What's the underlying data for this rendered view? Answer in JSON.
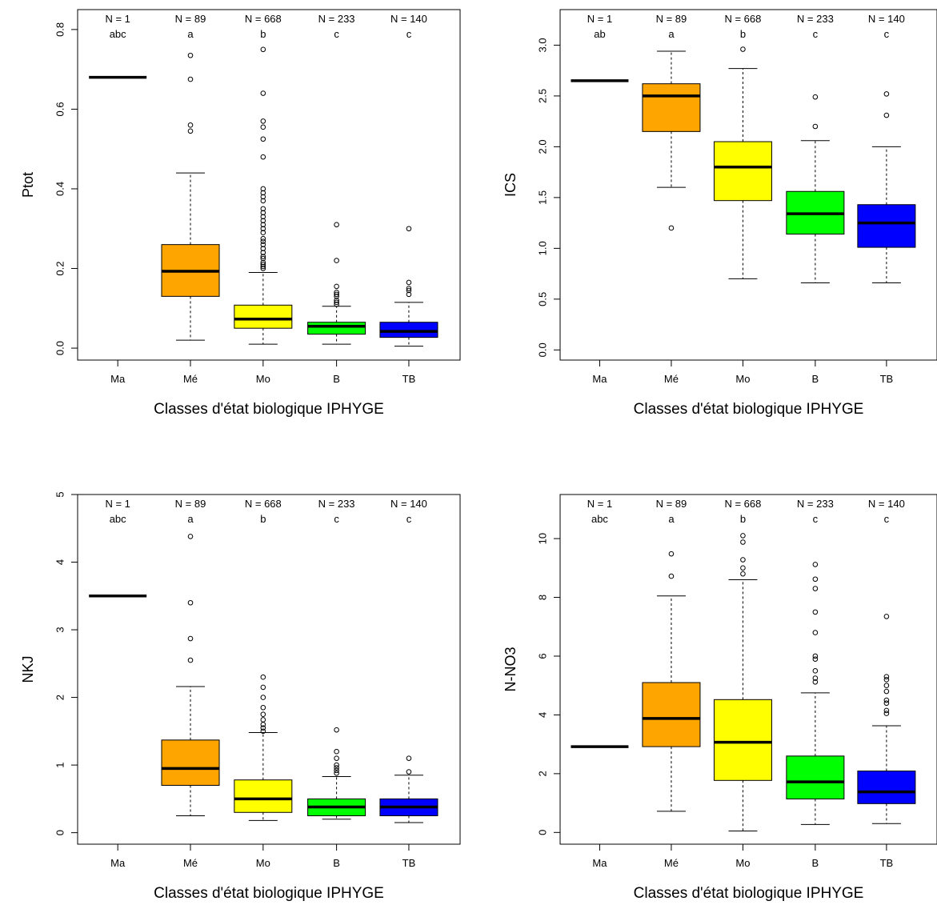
{
  "chart_data": [
    {
      "type": "box",
      "xlabel": "Classes d'état biologique IPHYGE",
      "ylabel": "Ptot",
      "ylim": [
        -0.03,
        0.85
      ],
      "yticks": [
        "0.0",
        "0.2",
        "0.4",
        "0.6",
        "0.8"
      ],
      "categories": [
        "Ma",
        "Mé",
        "Mo",
        "B",
        "TB"
      ],
      "counts": [
        "N = 1",
        "N = 89",
        "N = 668",
        "N = 233",
        "N = 140"
      ],
      "groups": [
        "abc",
        "a",
        "b",
        "c",
        "c"
      ],
      "colors": [
        "#000000",
        "#FFA500",
        "#FFFF00",
        "#00FF00",
        "#0000FF"
      ],
      "boxes": [
        {
          "whisker_low": 0.68,
          "q1": 0.68,
          "median": 0.68,
          "q3": 0.68,
          "whisker_high": 0.68,
          "outliers": []
        },
        {
          "whisker_low": 0.02,
          "q1": 0.13,
          "median": 0.193,
          "q3": 0.26,
          "whisker_high": 0.44,
          "outliers": [
            0.545,
            0.56,
            0.675,
            0.735
          ]
        },
        {
          "whisker_low": 0.01,
          "q1": 0.05,
          "median": 0.073,
          "q3": 0.108,
          "whisker_high": 0.19,
          "outliers": [
            0.2,
            0.205,
            0.21,
            0.215,
            0.225,
            0.23,
            0.24,
            0.25,
            0.26,
            0.268,
            0.275,
            0.29,
            0.3,
            0.31,
            0.32,
            0.33,
            0.34,
            0.35,
            0.37,
            0.38,
            0.39,
            0.4,
            0.48,
            0.525,
            0.555,
            0.57,
            0.64,
            0.75
          ]
        },
        {
          "whisker_low": 0.01,
          "q1": 0.035,
          "median": 0.055,
          "q3": 0.065,
          "whisker_high": 0.105,
          "outliers": [
            0.11,
            0.115,
            0.12,
            0.13,
            0.135,
            0.14,
            0.155,
            0.22,
            0.31
          ]
        },
        {
          "whisker_low": 0.005,
          "q1": 0.027,
          "median": 0.042,
          "q3": 0.065,
          "whisker_high": 0.115,
          "outliers": [
            0.135,
            0.145,
            0.15,
            0.165,
            0.3
          ]
        }
      ]
    },
    {
      "type": "box",
      "xlabel": "Classes d'état biologique IPHYGE",
      "ylabel": "ICS",
      "ylim": [
        -0.1,
        3.35
      ],
      "yticks": [
        "0.0",
        "0.5",
        "1.0",
        "1.5",
        "2.0",
        "2.5",
        "3.0"
      ],
      "categories": [
        "Ma",
        "Mé",
        "Mo",
        "B",
        "TB"
      ],
      "counts": [
        "N = 1",
        "N = 89",
        "N = 668",
        "N = 233",
        "N = 140"
      ],
      "groups": [
        "ab",
        "a",
        "b",
        "c",
        "c"
      ],
      "colors": [
        "#000000",
        "#FFA500",
        "#FFFF00",
        "#00FF00",
        "#0000FF"
      ],
      "boxes": [
        {
          "whisker_low": 2.65,
          "q1": 2.65,
          "median": 2.65,
          "q3": 2.65,
          "whisker_high": 2.65,
          "outliers": []
        },
        {
          "whisker_low": 1.6,
          "q1": 2.15,
          "median": 2.5,
          "q3": 2.62,
          "whisker_high": 2.94,
          "outliers": [
            1.2
          ]
        },
        {
          "whisker_low": 0.7,
          "q1": 1.47,
          "median": 1.8,
          "q3": 2.05,
          "whisker_high": 2.77,
          "outliers": [
            2.96
          ]
        },
        {
          "whisker_low": 0.66,
          "q1": 1.14,
          "median": 1.34,
          "q3": 1.56,
          "whisker_high": 2.06,
          "outliers": [
            2.2,
            2.49
          ]
        },
        {
          "whisker_low": 0.66,
          "q1": 1.01,
          "median": 1.25,
          "q3": 1.43,
          "whisker_high": 2.0,
          "outliers": [
            2.31,
            2.52
          ]
        }
      ]
    },
    {
      "type": "box",
      "xlabel": "Classes d'état biologique IPHYGE",
      "ylabel": "NKJ",
      "ylim": [
        -0.17,
        5.0
      ],
      "yticks": [
        "0",
        "1",
        "2",
        "3",
        "4",
        "5"
      ],
      "categories": [
        "Ma",
        "Mé",
        "Mo",
        "B",
        "TB"
      ],
      "counts": [
        "N = 1",
        "N = 89",
        "N = 668",
        "N = 233",
        "N = 140"
      ],
      "groups": [
        "abc",
        "a",
        "b",
        "c",
        "c"
      ],
      "colors": [
        "#000000",
        "#FFA500",
        "#FFFF00",
        "#00FF00",
        "#0000FF"
      ],
      "boxes": [
        {
          "whisker_low": 3.5,
          "q1": 3.5,
          "median": 3.5,
          "q3": 3.5,
          "whisker_high": 3.5,
          "outliers": []
        },
        {
          "whisker_low": 0.25,
          "q1": 0.7,
          "median": 0.95,
          "q3": 1.37,
          "whisker_high": 2.16,
          "outliers": [
            2.55,
            2.87,
            3.4,
            4.38
          ]
        },
        {
          "whisker_low": 0.18,
          "q1": 0.3,
          "median": 0.5,
          "q3": 0.78,
          "whisker_high": 1.48,
          "outliers": [
            1.5,
            1.55,
            1.6,
            1.67,
            1.75,
            1.85,
            2.0,
            2.15,
            2.3
          ]
        },
        {
          "whisker_low": 0.2,
          "q1": 0.25,
          "median": 0.38,
          "q3": 0.5,
          "whisker_high": 0.83,
          "outliers": [
            0.88,
            0.92,
            0.96,
            1.0,
            1.1,
            1.2,
            1.52
          ]
        },
        {
          "whisker_low": 0.15,
          "q1": 0.25,
          "median": 0.38,
          "q3": 0.5,
          "whisker_high": 0.85,
          "outliers": [
            0.9,
            1.1
          ]
        }
      ]
    },
    {
      "type": "box",
      "xlabel": "Classes d'état biologique IPHYGE",
      "ylabel": "N-NO3",
      "ylim": [
        -0.4,
        11.5
      ],
      "yticks": [
        "0",
        "2",
        "4",
        "6",
        "8",
        "10"
      ],
      "categories": [
        "Ma",
        "Mé",
        "Mo",
        "B",
        "TB"
      ],
      "counts": [
        "N = 1",
        "N = 89",
        "N = 668",
        "N = 233",
        "N = 140"
      ],
      "groups": [
        "abc",
        "a",
        "b",
        "c",
        "c"
      ],
      "colors": [
        "#000000",
        "#FFA500",
        "#FFFF00",
        "#00FF00",
        "#0000FF"
      ],
      "boxes": [
        {
          "whisker_low": 2.92,
          "q1": 2.92,
          "median": 2.92,
          "q3": 2.92,
          "whisker_high": 2.92,
          "outliers": []
        },
        {
          "whisker_low": 0.72,
          "q1": 2.92,
          "median": 3.88,
          "q3": 5.1,
          "whisker_high": 8.05,
          "outliers": [
            8.72,
            9.48
          ]
        },
        {
          "whisker_low": 0.05,
          "q1": 1.77,
          "median": 3.07,
          "q3": 4.52,
          "whisker_high": 8.6,
          "outliers": [
            8.8,
            9.0,
            9.28,
            9.88,
            10.1
          ]
        },
        {
          "whisker_low": 0.27,
          "q1": 1.14,
          "median": 1.72,
          "q3": 2.6,
          "whisker_high": 4.75,
          "outliers": [
            5.12,
            5.25,
            5.5,
            5.9,
            6.0,
            6.8,
            7.5,
            8.3,
            8.62,
            9.12
          ]
        },
        {
          "whisker_low": 0.3,
          "q1": 0.98,
          "median": 1.38,
          "q3": 2.09,
          "whisker_high": 3.63,
          "outliers": [
            4.05,
            4.15,
            4.4,
            4.5,
            4.8,
            5.0,
            5.2,
            5.3,
            7.35
          ]
        }
      ]
    }
  ]
}
